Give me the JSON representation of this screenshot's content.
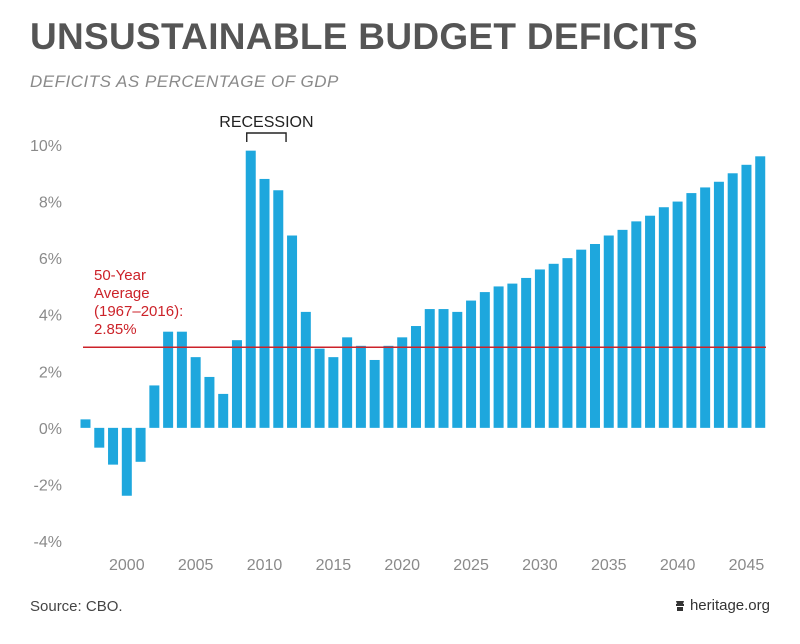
{
  "header": {
    "title": "UNSUSTAINABLE BUDGET DEFICITS",
    "subtitle": "DEFICITS AS PERCENTAGE OF GDP"
  },
  "footer": {
    "source": "Source: CBO.",
    "brand": "heritage.org"
  },
  "colors": {
    "bar": "#1ea7dd",
    "average_line": "#cc2229",
    "title": "#555555",
    "axis_text": "#8a8a8a"
  },
  "chart_data": {
    "type": "bar",
    "x": [
      1997,
      1998,
      1999,
      2000,
      2001,
      2002,
      2003,
      2004,
      2005,
      2006,
      2007,
      2008,
      2009,
      2010,
      2011,
      2012,
      2013,
      2014,
      2015,
      2016,
      2017,
      2018,
      2019,
      2020,
      2021,
      2022,
      2023,
      2024,
      2025,
      2026,
      2027,
      2028,
      2029,
      2030,
      2031,
      2032,
      2033,
      2034,
      2035,
      2036,
      2037,
      2038,
      2039,
      2040,
      2041,
      2042,
      2043,
      2044,
      2045,
      2046
    ],
    "values": [
      0.3,
      -0.7,
      -1.3,
      -2.4,
      -1.2,
      1.5,
      3.4,
      3.4,
      2.5,
      1.8,
      1.2,
      3.1,
      9.8,
      8.8,
      8.4,
      6.8,
      4.1,
      2.8,
      2.5,
      3.2,
      2.9,
      2.4,
      2.9,
      3.2,
      3.6,
      4.2,
      4.2,
      4.1,
      4.5,
      4.8,
      5.0,
      5.1,
      5.3,
      5.6,
      5.8,
      6.0,
      6.3,
      6.5,
      6.8,
      7.0,
      7.3,
      7.5,
      7.8,
      8.0,
      8.3,
      8.5,
      8.7,
      9.0,
      9.3,
      9.6
    ],
    "ylim": [
      -4,
      10
    ],
    "yticks": [
      -4,
      -2,
      0,
      2,
      4,
      6,
      8,
      10
    ],
    "ytick_labels": [
      "-4%",
      "-2%",
      "0%",
      "2%",
      "4%",
      "6%",
      "8%",
      "10%"
    ],
    "xticks": [
      2000,
      2005,
      2010,
      2015,
      2020,
      2025,
      2030,
      2035,
      2040,
      2045
    ],
    "xtick_labels": [
      "2000",
      "2005",
      "2010",
      "2015",
      "2020",
      "2025",
      "2030",
      "2035",
      "2040",
      "2045"
    ],
    "average": {
      "value": 2.85,
      "label_lines": [
        "50-Year",
        "Average",
        "(1967–2016):",
        "2.85%"
      ]
    },
    "annotation": {
      "text": "RECESSION",
      "start": 2009,
      "end": 2012
    },
    "grid": false,
    "legend": "none"
  }
}
